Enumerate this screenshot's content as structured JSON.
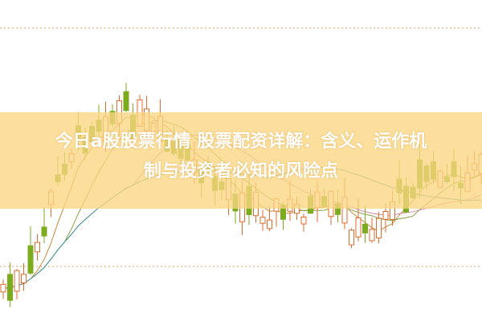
{
  "title": {
    "line1": "今日a股股票行情 股票配资详解：含义、运作机",
    "line2": "制与投资者必知的风险点"
  },
  "colors": {
    "up": "#e06a2a",
    "down": "#7cab1e",
    "banner": "#fbd682",
    "text": "#ffffff"
  }
}
